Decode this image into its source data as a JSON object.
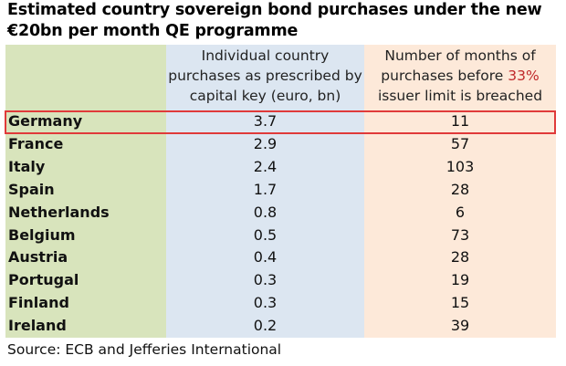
{
  "title": "Estimated country sovereign bond purchases under the new €20bn per month QE programme",
  "source": "Source: ECB and Jefferies International",
  "colors": {
    "country_bg": "#d8e4bc",
    "purchases_bg": "#dce6f1",
    "months_bg": "#fde9d9",
    "highlight": "#e03a3a",
    "emphasis_text": "#c0292b"
  },
  "chart_data": {
    "type": "table",
    "title": "Estimated country sovereign bond purchases under the new €20bn per month QE programme",
    "columns": {
      "purchases": "Individual country purchases as prescribed by capital key (euro, bn)",
      "months_before": "Number of months of purchases before",
      "months_pct": "33%",
      "months_after": "issuer limit is breached"
    },
    "highlighted_row": "Germany",
    "rows": [
      {
        "country": "Germany",
        "purchases": "3.7",
        "months": "11"
      },
      {
        "country": "France",
        "purchases": "2.9",
        "months": "57"
      },
      {
        "country": "Italy",
        "purchases": "2.4",
        "months": "103"
      },
      {
        "country": "Spain",
        "purchases": "1.7",
        "months": "28"
      },
      {
        "country": "Netherlands",
        "purchases": "0.8",
        "months": "6"
      },
      {
        "country": "Belgium",
        "purchases": "0.5",
        "months": "73"
      },
      {
        "country": "Austria",
        "purchases": "0.4",
        "months": "28"
      },
      {
        "country": "Portugal",
        "purchases": "0.3",
        "months": "19"
      },
      {
        "country": "Finland",
        "purchases": "0.3",
        "months": "15"
      },
      {
        "country": "Ireland",
        "purchases": "0.2",
        "months": "39"
      }
    ]
  }
}
